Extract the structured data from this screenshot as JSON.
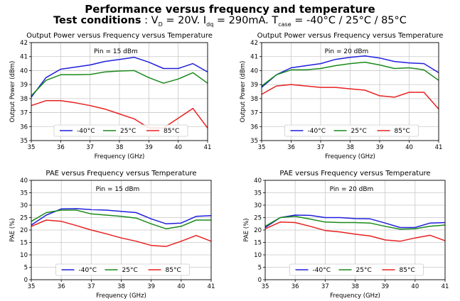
{
  "header": {
    "title": "Performance versus frequency and temperature",
    "cond_label": "Test conditions",
    "cond_sep": " : ",
    "cond_vd": "V",
    "cond_vd_sub": "D",
    "cond_vd_val": " = 20V. I",
    "cond_id_sub": "dq",
    "cond_id_val": " = 290mA. T",
    "cond_t_sub": "case",
    "cond_t_val": " = -40°C / 25°C / 85°C"
  },
  "colors": {
    "-40°C": "#1f1fdc",
    "25°C": "#1a8a1a",
    "85°C": "#e82020",
    "grid": "#c8c8c8"
  },
  "chart_data": [
    {
      "type": "line",
      "title": "Output Power versus Frequency versus Temperature",
      "annotation": "Pin = 15 dBm",
      "xlabel": "Frequency (GHz)",
      "ylabel": "Output Power (dBm)",
      "xlim": [
        35,
        41
      ],
      "ylim": [
        35,
        42
      ],
      "xticks": [
        35,
        36,
        37,
        38,
        39,
        40,
        41
      ],
      "yticks": [
        35,
        36,
        37,
        38,
        39,
        40,
        41,
        42
      ],
      "x": [
        35,
        35.5,
        36,
        36.5,
        37,
        37.5,
        38,
        38.5,
        39,
        39.5,
        40,
        40.5,
        41
      ],
      "series": [
        {
          "name": "-40°C",
          "values": [
            38.1,
            39.5,
            40.1,
            40.25,
            40.4,
            40.65,
            40.8,
            40.95,
            40.6,
            40.15,
            40.15,
            40.5,
            39.9
          ]
        },
        {
          "name": "25°C",
          "values": [
            38.2,
            39.3,
            39.7,
            39.7,
            39.72,
            39.9,
            39.97,
            40.0,
            39.5,
            39.1,
            39.4,
            39.85,
            39.1
          ]
        },
        {
          "name": "85°C",
          "values": [
            37.5,
            37.85,
            37.85,
            37.7,
            37.5,
            37.25,
            36.9,
            36.55,
            35.9,
            35.9,
            36.6,
            37.3,
            35.9
          ]
        }
      ]
    },
    {
      "type": "line",
      "title": "Output Power versus Frequency versus Temperature",
      "annotation": "Pin = 20 dBm",
      "xlabel": "Frequency (GHz)",
      "ylabel": "Output Power (dBm)",
      "xlim": [
        35,
        41
      ],
      "ylim": [
        35,
        42
      ],
      "xticks": [
        35,
        36,
        37,
        38,
        39,
        40,
        41
      ],
      "yticks": [
        35,
        36,
        37,
        38,
        39,
        40,
        41,
        42
      ],
      "x": [
        35,
        35.5,
        36,
        36.5,
        37,
        37.5,
        38,
        38.5,
        39,
        39.5,
        40,
        40.5,
        41
      ],
      "series": [
        {
          "name": "-40°C",
          "values": [
            38.8,
            39.7,
            40.2,
            40.35,
            40.5,
            40.8,
            40.95,
            41.05,
            40.9,
            40.65,
            40.55,
            40.5,
            39.85
          ]
        },
        {
          "name": "25°C",
          "values": [
            38.9,
            39.7,
            40.05,
            40.05,
            40.15,
            40.35,
            40.5,
            40.6,
            40.4,
            40.15,
            40.2,
            40.05,
            39.3
          ]
        },
        {
          "name": "85°C",
          "values": [
            38.3,
            38.9,
            39.0,
            38.9,
            38.8,
            38.8,
            38.7,
            38.6,
            38.2,
            38.1,
            38.45,
            38.45,
            37.25
          ]
        }
      ]
    },
    {
      "type": "line",
      "title": "PAE versus Frequency versus Temperature",
      "annotation": "Pin = 15 dBm",
      "xlabel": "Frequency (GHz)",
      "ylabel": "PAE (%)",
      "xlim": [
        35,
        41
      ],
      "ylim": [
        0,
        40
      ],
      "xticks": [
        35,
        36,
        37,
        38,
        39,
        40,
        41
      ],
      "yticks": [
        0,
        5,
        10,
        15,
        20,
        25,
        30,
        35,
        40
      ],
      "x": [
        35,
        35.5,
        36,
        36.5,
        37,
        37.5,
        38,
        38.5,
        39,
        39.5,
        40,
        40.5,
        41
      ],
      "series": [
        {
          "name": "-40°C",
          "values": [
            22.0,
            26.0,
            28.5,
            28.6,
            28.2,
            28.0,
            27.5,
            27.0,
            24.5,
            22.5,
            22.8,
            25.5,
            25.8
          ]
        },
        {
          "name": "25°C",
          "values": [
            23.5,
            27.0,
            28.0,
            28.0,
            26.5,
            26.0,
            25.5,
            24.8,
            22.5,
            20.5,
            21.5,
            24.0,
            24.0
          ]
        },
        {
          "name": "85°C",
          "values": [
            21.5,
            24.0,
            23.5,
            21.8,
            20.0,
            18.5,
            16.8,
            15.5,
            13.8,
            13.4,
            15.5,
            17.8,
            15.5
          ]
        }
      ]
    },
    {
      "type": "line",
      "title": "PAE versus Frequency versus Temperature",
      "annotation": "Pin = 20 dBm",
      "xlabel": "Frequency (GHz)",
      "ylabel": "PAE (%)",
      "xlim": [
        35,
        41
      ],
      "ylim": [
        0,
        40
      ],
      "xticks": [
        35,
        36,
        37,
        38,
        39,
        40,
        41
      ],
      "yticks": [
        0,
        5,
        10,
        15,
        20,
        25,
        30,
        35,
        40
      ],
      "x": [
        35,
        35.5,
        36,
        36.5,
        37,
        37.5,
        38,
        38.5,
        39,
        39.5,
        40,
        40.5,
        41
      ],
      "series": [
        {
          "name": "-40°C",
          "values": [
            21.0,
            25.0,
            26.0,
            25.9,
            25.0,
            25.0,
            24.6,
            24.5,
            22.8,
            21.0,
            21.0,
            22.8,
            23.0
          ]
        },
        {
          "name": "25°C",
          "values": [
            21.5,
            25.0,
            25.5,
            24.4,
            23.2,
            23.0,
            23.0,
            22.8,
            21.5,
            20.3,
            20.5,
            21.5,
            22.0
          ]
        },
        {
          "name": "85°C",
          "values": [
            20.5,
            23.2,
            23.0,
            21.5,
            19.8,
            19.2,
            18.3,
            17.6,
            16.0,
            15.5,
            16.8,
            17.9,
            15.7
          ]
        }
      ]
    }
  ]
}
